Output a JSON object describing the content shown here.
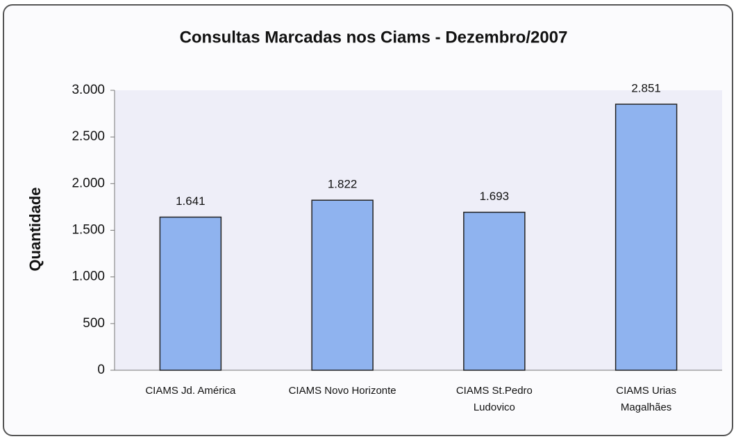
{
  "chart_data": {
    "type": "bar",
    "title": "Consultas Marcadas nos Ciams - Dezembro/2007",
    "y_label": "Quantidade",
    "categories": [
      "CIAMS Jd. América",
      "CIAMS Novo Horizonte",
      "CIAMS St.Pedro\nLudovico",
      "CIAMS Urias\nMagalhães"
    ],
    "values": [
      1641,
      1822,
      1693,
      2851
    ],
    "value_labels": [
      "1.641",
      "1.822",
      "1.693",
      "2.851"
    ],
    "color": "#8fb3ef",
    "ylim": [
      0,
      3000
    ],
    "yticks": [
      0,
      500,
      {
        "value": 1000,
        "label": "1.000"
      },
      {
        "value": 1500,
        "label": "1.500"
      },
      {
        "value": 2000,
        "label": "2.000"
      },
      {
        "value": 2500,
        "label": "2.500"
      },
      {
        "value": 3000,
        "label": "3.000"
      }
    ],
    "grid": false
  }
}
